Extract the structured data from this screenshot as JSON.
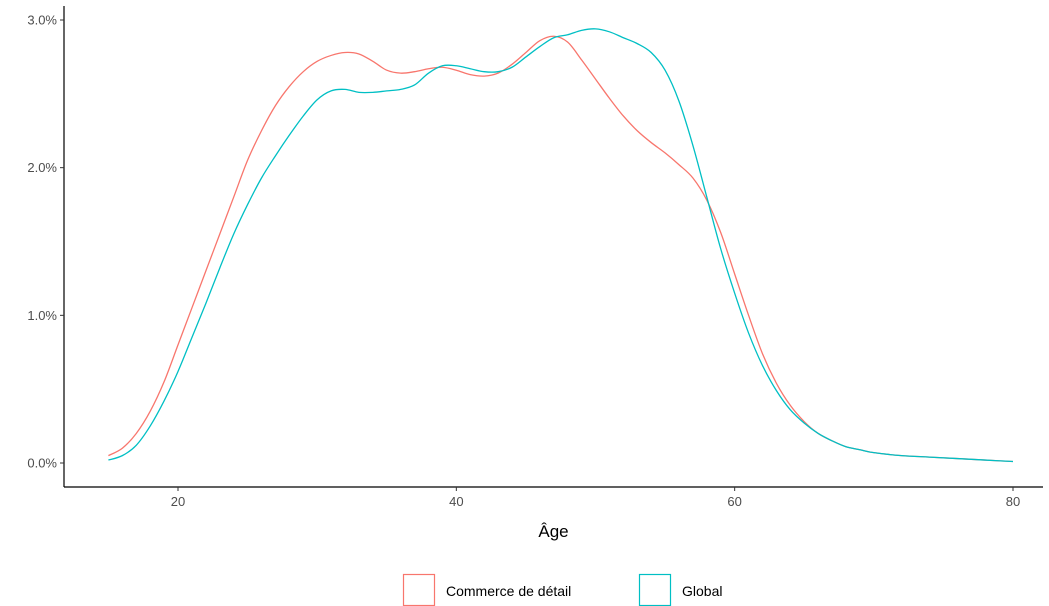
{
  "chart_data": {
    "type": "line",
    "title": "",
    "xlabel": "Âge",
    "ylabel": "",
    "xlim": [
      15,
      80
    ],
    "ylim": [
      0,
      3.0
    ],
    "x_ticks": [
      20,
      40,
      60,
      80
    ],
    "x_tick_labels": [
      "20",
      "40",
      "60",
      "80"
    ],
    "y_ticks": [
      0,
      1,
      2,
      3
    ],
    "y_tick_labels": [
      "0.0%",
      "1.0%",
      "2.0%",
      "3.0%"
    ],
    "grid": false,
    "legend_position": "bottom",
    "colors": {
      "Commerce de détail": "#F8766D",
      "Global": "#00BFC4"
    },
    "series": [
      {
        "name": "Commerce de détail",
        "x": [
          15,
          16,
          17,
          18,
          19,
          20,
          21,
          22,
          23,
          24,
          25,
          26,
          27,
          28,
          29,
          30,
          31,
          32,
          33,
          34,
          35,
          36,
          37,
          38,
          39,
          40,
          41,
          42,
          43,
          44,
          45,
          46,
          47,
          48,
          49,
          50,
          51,
          52,
          53,
          54,
          55,
          56,
          57,
          58,
          59,
          60,
          61,
          62,
          63,
          64,
          65,
          66,
          67,
          68,
          69,
          70,
          72,
          74,
          76,
          78,
          80
        ],
        "values": [
          0.05,
          0.1,
          0.2,
          0.35,
          0.55,
          0.8,
          1.05,
          1.3,
          1.55,
          1.8,
          2.05,
          2.25,
          2.42,
          2.55,
          2.65,
          2.72,
          2.76,
          2.78,
          2.77,
          2.72,
          2.66,
          2.64,
          2.65,
          2.67,
          2.68,
          2.66,
          2.63,
          2.62,
          2.64,
          2.7,
          2.78,
          2.86,
          2.89,
          2.85,
          2.73,
          2.6,
          2.47,
          2.35,
          2.25,
          2.17,
          2.1,
          2.02,
          1.93,
          1.78,
          1.56,
          1.28,
          1.0,
          0.74,
          0.54,
          0.39,
          0.28,
          0.2,
          0.15,
          0.11,
          0.09,
          0.07,
          0.05,
          0.04,
          0.03,
          0.02,
          0.01
        ]
      },
      {
        "name": "Global",
        "x": [
          15,
          16,
          17,
          18,
          19,
          20,
          21,
          22,
          23,
          24,
          25,
          26,
          27,
          28,
          29,
          30,
          31,
          32,
          33,
          34,
          35,
          36,
          37,
          38,
          39,
          40,
          41,
          42,
          43,
          44,
          45,
          46,
          47,
          48,
          49,
          50,
          51,
          52,
          53,
          54,
          55,
          56,
          57,
          58,
          59,
          60,
          61,
          62,
          63,
          64,
          65,
          66,
          67,
          68,
          69,
          70,
          72,
          74,
          76,
          78,
          80
        ],
        "values": [
          0.02,
          0.05,
          0.12,
          0.25,
          0.42,
          0.62,
          0.85,
          1.08,
          1.32,
          1.55,
          1.75,
          1.93,
          2.08,
          2.22,
          2.35,
          2.46,
          2.52,
          2.53,
          2.51,
          2.51,
          2.52,
          2.53,
          2.56,
          2.64,
          2.69,
          2.69,
          2.67,
          2.65,
          2.65,
          2.68,
          2.75,
          2.82,
          2.88,
          2.9,
          2.93,
          2.94,
          2.92,
          2.88,
          2.84,
          2.78,
          2.66,
          2.45,
          2.15,
          1.8,
          1.45,
          1.15,
          0.88,
          0.66,
          0.49,
          0.36,
          0.27,
          0.2,
          0.15,
          0.11,
          0.09,
          0.07,
          0.05,
          0.04,
          0.03,
          0.02,
          0.01
        ]
      }
    ]
  }
}
